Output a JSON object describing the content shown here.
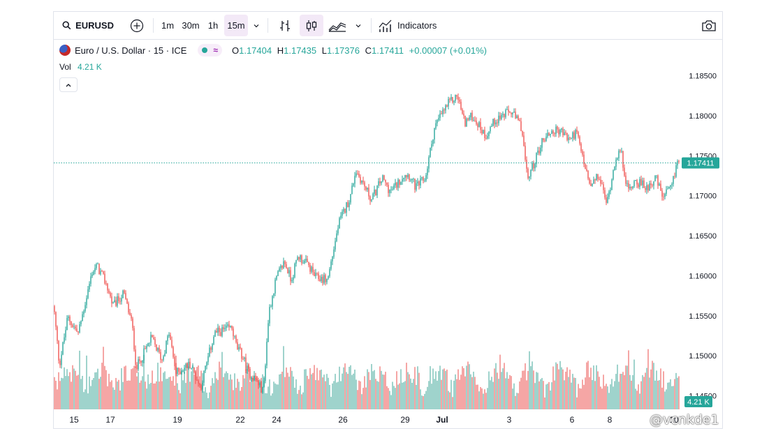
{
  "toolbar": {
    "symbol": "EURUSD",
    "intervals": [
      "1m",
      "30m",
      "1h",
      "15m"
    ],
    "active_interval": "15m",
    "indicators_label": "Indicators"
  },
  "legend": {
    "title": "Euro / U.S. Dollar · 15 · ICE",
    "o_label": "O",
    "o_value": "1.17404",
    "h_label": "H",
    "h_value": "1.17435",
    "l_label": "L",
    "l_value": "1.17376",
    "c_label": "C",
    "c_value": "1.17411",
    "change": "+0.00007 (+0.01%)",
    "vol_label": "Vol",
    "vol_value": "4.21 K"
  },
  "watermark": "@vcnkde1",
  "colors": {
    "up": "#26a69a",
    "down": "#ef5350",
    "price_line": "#26a69a",
    "accent": "#9c27b0"
  },
  "chart_data": {
    "type": "candlestick",
    "symbol": "EURUSD",
    "interval": "15",
    "y_ticks": [
      "1.18500",
      "1.18000",
      "1.17500",
      "1.17000",
      "1.16500",
      "1.16000",
      "1.15500",
      "1.15000",
      "1.14500"
    ],
    "ylim": [
      1.1433,
      1.1895
    ],
    "x_ticks": [
      "15",
      "17",
      "19",
      "22",
      "24",
      "26",
      "29",
      "Jul",
      "3",
      "6",
      "8",
      "10"
    ],
    "last_price": "1.17411",
    "last_volume": "4.21 K",
    "price_path": [
      [
        0,
        1.1562
      ],
      [
        8,
        1.1488
      ],
      [
        20,
        1.1548
      ],
      [
        35,
        1.1528
      ],
      [
        55,
        1.1605
      ],
      [
        62,
        1.1612
      ],
      [
        75,
        1.159
      ],
      [
        85,
        1.1562
      ],
      [
        100,
        1.1578
      ],
      [
        112,
        1.154
      ],
      [
        118,
        1.1485
      ],
      [
        140,
        1.1522
      ],
      [
        155,
        1.1495
      ],
      [
        165,
        1.1528
      ],
      [
        175,
        1.1478
      ],
      [
        195,
        1.149
      ],
      [
        210,
        1.146
      ],
      [
        230,
        1.1528
      ],
      [
        255,
        1.1535
      ],
      [
        262,
        1.151
      ],
      [
        270,
        1.15
      ],
      [
        278,
        1.148
      ],
      [
        290,
        1.147
      ],
      [
        300,
        1.1455
      ],
      [
        308,
        1.1555
      ],
      [
        318,
        1.1595
      ],
      [
        330,
        1.1618
      ],
      [
        340,
        1.1595
      ],
      [
        350,
        1.1625
      ],
      [
        365,
        1.1612
      ],
      [
        375,
        1.1598
      ],
      [
        392,
        1.1595
      ],
      [
        408,
        1.1665
      ],
      [
        425,
        1.17
      ],
      [
        432,
        1.1732
      ],
      [
        440,
        1.172
      ],
      [
        455,
        1.1695
      ],
      [
        470,
        1.1722
      ],
      [
        482,
        1.1705
      ],
      [
        492,
        1.1715
      ],
      [
        502,
        1.1728
      ],
      [
        510,
        1.1725
      ],
      [
        518,
        1.171
      ],
      [
        532,
        1.1722
      ],
      [
        545,
        1.1785
      ],
      [
        555,
        1.1802
      ],
      [
        565,
        1.1815
      ],
      [
        578,
        1.1825
      ],
      [
        588,
        1.1792
      ],
      [
        600,
        1.18
      ],
      [
        618,
        1.1775
      ],
      [
        632,
        1.1795
      ],
      [
        642,
        1.18
      ],
      [
        655,
        1.1805
      ],
      [
        670,
        1.1785
      ],
      [
        678,
        1.172
      ],
      [
        688,
        1.1742
      ],
      [
        700,
        1.177
      ],
      [
        712,
        1.178
      ],
      [
        725,
        1.1782
      ],
      [
        738,
        1.177
      ],
      [
        748,
        1.178
      ],
      [
        760,
        1.1738
      ],
      [
        768,
        1.171
      ],
      [
        780,
        1.1725
      ],
      [
        792,
        1.169
      ],
      [
        805,
        1.175
      ],
      [
        812,
        1.1755
      ],
      [
        822,
        1.1705
      ],
      [
        832,
        1.172
      ],
      [
        848,
        1.171
      ],
      [
        862,
        1.1722
      ],
      [
        872,
        1.1698
      ],
      [
        885,
        1.171
      ],
      [
        893,
        1.1745
      ],
      [
        896,
        1.1741
      ]
    ],
    "volume_range": [
      0,
      4.5
    ]
  }
}
